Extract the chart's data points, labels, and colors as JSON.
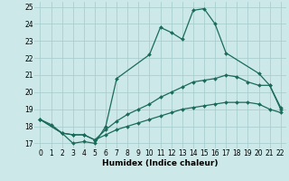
{
  "xlabel": "Humidex (Indice chaleur)",
  "xlim": [
    -0.5,
    22.5
  ],
  "ylim": [
    16.7,
    25.3
  ],
  "yticks": [
    17,
    18,
    19,
    20,
    21,
    22,
    23,
    24,
    25
  ],
  "xticks": [
    0,
    1,
    2,
    3,
    4,
    5,
    6,
    7,
    8,
    9,
    10,
    11,
    12,
    13,
    14,
    15,
    16,
    17,
    18,
    19,
    20,
    21,
    22
  ],
  "bg_color": "#cce8e8",
  "grid_color": "#aacece",
  "line_color": "#1a6b5a",
  "line1_x": [
    0,
    1,
    2,
    3,
    4,
    5,
    6,
    7,
    10,
    11,
    12,
    13,
    14,
    15,
    16,
    17,
    20,
    21,
    22
  ],
  "line1_y": [
    18.4,
    18.1,
    17.6,
    17.0,
    17.1,
    17.0,
    18.0,
    20.8,
    22.2,
    23.8,
    23.5,
    23.1,
    24.8,
    24.9,
    24.0,
    22.3,
    21.1,
    20.4,
    19.0
  ],
  "line2_x": [
    0,
    2,
    3,
    4,
    5,
    6,
    7,
    8,
    9,
    10,
    11,
    12,
    13,
    14,
    15,
    16,
    17,
    18,
    19,
    20,
    21,
    22
  ],
  "line2_y": [
    18.4,
    17.6,
    17.5,
    17.5,
    17.2,
    17.8,
    18.3,
    18.7,
    19.0,
    19.3,
    19.7,
    20.0,
    20.3,
    20.6,
    20.7,
    20.8,
    21.0,
    20.9,
    20.6,
    20.4,
    20.4,
    19.1
  ],
  "line3_x": [
    0,
    2,
    3,
    4,
    5,
    6,
    7,
    8,
    9,
    10,
    11,
    12,
    13,
    14,
    15,
    16,
    17,
    18,
    19,
    20,
    21,
    22
  ],
  "line3_y": [
    18.4,
    17.6,
    17.5,
    17.5,
    17.2,
    17.5,
    17.8,
    18.0,
    18.2,
    18.4,
    18.6,
    18.8,
    19.0,
    19.1,
    19.2,
    19.3,
    19.4,
    19.4,
    19.4,
    19.3,
    19.0,
    18.8
  ]
}
